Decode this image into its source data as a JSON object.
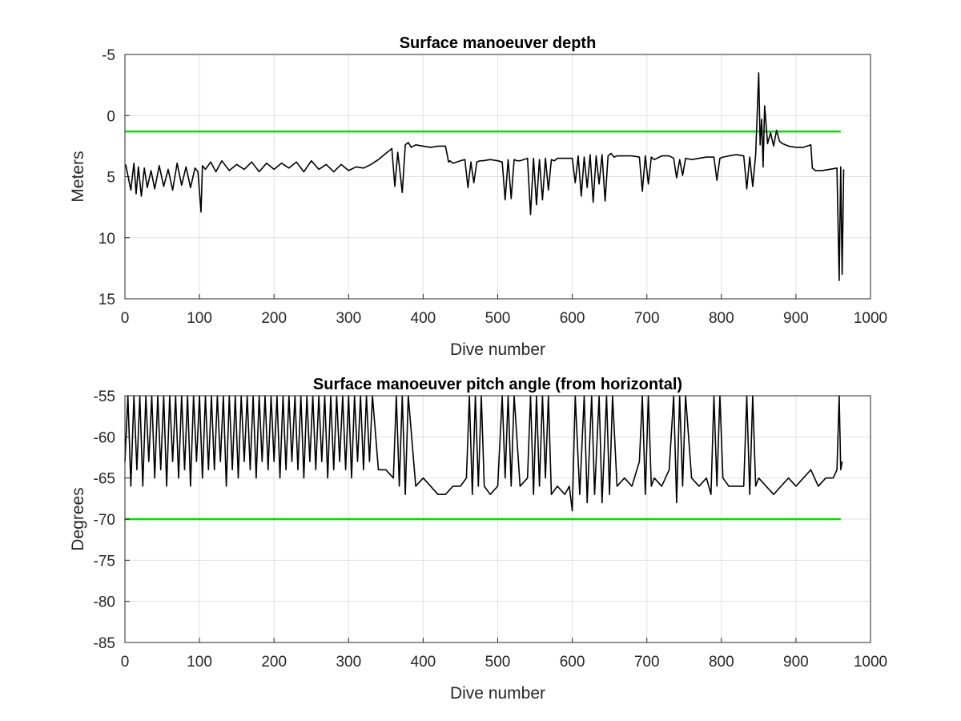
{
  "chart_data": [
    {
      "type": "line",
      "title": "Surface manoeuver depth",
      "xlabel": "Dive number",
      "ylabel": "Meters",
      "xlim": [
        0,
        1000
      ],
      "ylim": [
        -5,
        15
      ],
      "y_reversed": true,
      "xticks": [
        0,
        100,
        200,
        300,
        400,
        500,
        600,
        700,
        800,
        900,
        1000
      ],
      "yticks": [
        -5,
        0,
        5,
        10,
        15
      ],
      "grid": true,
      "series": [
        {
          "color": "#000000",
          "x": [
            1,
            8,
            12,
            15,
            18,
            22,
            26,
            30,
            35,
            40,
            46,
            52,
            58,
            64,
            70,
            76,
            82,
            88,
            94,
            98,
            102,
            104,
            108,
            115,
            122,
            130,
            140,
            150,
            160,
            170,
            180,
            190,
            200,
            210,
            220,
            230,
            240,
            250,
            260,
            270,
            280,
            290,
            300,
            310,
            320,
            330,
            340,
            350,
            358,
            362,
            366,
            372,
            376,
            380,
            384,
            390,
            400,
            410,
            420,
            430,
            434,
            436,
            440,
            450,
            456,
            460,
            464,
            468,
            472,
            476,
            480,
            490,
            500,
            506,
            510,
            514,
            518,
            522,
            526,
            530,
            540,
            544,
            548,
            552,
            556,
            560,
            564,
            568,
            572,
            576,
            580,
            590,
            600,
            604,
            608,
            612,
            616,
            620,
            624,
            628,
            632,
            636,
            640,
            644,
            648,
            652,
            656,
            660,
            670,
            680,
            690,
            694,
            698,
            702,
            706,
            710,
            720,
            730,
            736,
            740,
            744,
            748,
            752,
            760,
            770,
            780,
            790,
            794,
            798,
            802,
            810,
            820,
            830,
            834,
            838,
            842,
            846,
            850,
            852,
            854,
            856,
            858,
            862,
            866,
            870,
            874,
            878,
            882,
            890,
            900,
            910,
            920,
            922,
            926,
            935,
            945,
            955,
            958,
            960,
            962,
            964
          ],
          "y": [
            4.0,
            6.1,
            3.9,
            6.4,
            4.2,
            6.6,
            4.3,
            5.9,
            4.5,
            6.0,
            4.1,
            5.8,
            4.4,
            6.1,
            3.9,
            5.7,
            4.2,
            5.9,
            4.3,
            4.6,
            7.9,
            4.1,
            4.4,
            3.8,
            4.6,
            3.7,
            4.5,
            4.0,
            4.4,
            3.8,
            4.6,
            3.9,
            4.4,
            3.9,
            4.3,
            3.8,
            4.6,
            3.7,
            4.4,
            4.0,
            4.6,
            4.0,
            4.5,
            4.2,
            4.3,
            4.0,
            3.6,
            3.1,
            2.7,
            5.8,
            3.0,
            6.3,
            2.4,
            2.2,
            2.6,
            2.4,
            2.5,
            2.6,
            2.5,
            2.5,
            3.8,
            3.7,
            3.9,
            3.7,
            3.6,
            5.9,
            3.8,
            5.5,
            3.8,
            3.7,
            3.7,
            3.6,
            3.7,
            3.8,
            6.9,
            3.6,
            6.8,
            3.6,
            3.7,
            3.7,
            3.5,
            8.1,
            3.5,
            7.3,
            3.6,
            6.9,
            3.5,
            6.1,
            3.6,
            3.7,
            3.5,
            3.5,
            3.5,
            5.5,
            3.3,
            6.6,
            3.4,
            5.9,
            3.2,
            7.1,
            3.3,
            5.6,
            3.2,
            7.0,
            3.3,
            3.1,
            3.4,
            3.3,
            3.3,
            3.3,
            3.4,
            6.2,
            3.3,
            5.6,
            3.4,
            3.6,
            3.3,
            3.3,
            3.5,
            5.1,
            3.6,
            4.9,
            3.5,
            3.6,
            3.5,
            3.4,
            3.4,
            5.3,
            3.5,
            3.4,
            3.3,
            3.2,
            3.3,
            6.0,
            3.4,
            5.8,
            3.2,
            -3.5,
            2.4,
            0.3,
            4.2,
            -0.8,
            2.3,
            1.4,
            2.5,
            1.2,
            2.1,
            2.3,
            2.5,
            2.6,
            2.6,
            2.4,
            4.3,
            4.5,
            4.5,
            4.4,
            4.3,
            13.5,
            4.2,
            13.0,
            4.4
          ]
        }
      ],
      "reference_line": {
        "y": 1.3,
        "x": [
          0,
          960
        ],
        "color": "#00e000"
      }
    },
    {
      "type": "line",
      "title": "Surface manoeuver pitch angle (from horizontal)",
      "xlabel": "Dive number",
      "ylabel": "Degrees",
      "xlim": [
        0,
        1000
      ],
      "ylim": [
        -85,
        -55
      ],
      "xticks": [
        0,
        100,
        200,
        300,
        400,
        500,
        600,
        700,
        800,
        900,
        1000
      ],
      "yticks": [
        -55,
        -60,
        -65,
        -70,
        -75,
        -80,
        -85
      ],
      "grid": true,
      "series": [
        {
          "color": "#000000",
          "x": [
            0,
            4,
            8,
            12,
            16,
            20,
            24,
            28,
            32,
            36,
            40,
            44,
            48,
            52,
            56,
            60,
            64,
            68,
            72,
            76,
            80,
            84,
            88,
            92,
            96,
            100,
            104,
            108,
            112,
            116,
            120,
            124,
            128,
            132,
            136,
            140,
            144,
            148,
            152,
            156,
            160,
            164,
            168,
            172,
            176,
            180,
            184,
            188,
            192,
            196,
            200,
            204,
            208,
            212,
            216,
            220,
            224,
            228,
            232,
            236,
            240,
            244,
            248,
            252,
            256,
            260,
            264,
            268,
            272,
            276,
            280,
            284,
            288,
            292,
            296,
            300,
            304,
            308,
            312,
            316,
            320,
            324,
            328,
            332,
            340,
            350,
            360,
            364,
            368,
            372,
            376,
            380,
            390,
            400,
            410,
            420,
            430,
            440,
            450,
            458,
            462,
            466,
            470,
            474,
            478,
            482,
            490,
            500,
            506,
            510,
            514,
            518,
            522,
            530,
            540,
            544,
            548,
            552,
            556,
            560,
            564,
            568,
            572,
            580,
            590,
            596,
            600,
            604,
            610,
            616,
            620,
            626,
            630,
            636,
            640,
            646,
            650,
            654,
            660,
            670,
            680,
            690,
            694,
            698,
            702,
            706,
            710,
            720,
            730,
            736,
            740,
            744,
            748,
            752,
            760,
            770,
            780,
            786,
            790,
            794,
            798,
            802,
            810,
            820,
            830,
            834,
            838,
            842,
            846,
            850,
            860,
            870,
            880,
            890,
            900,
            910,
            920,
            930,
            940,
            950,
            955,
            958,
            960,
            962
          ],
          "y": [
            -63,
            -55,
            -66,
            -55,
            -64,
            -55,
            -66,
            -55,
            -63,
            -55,
            -65,
            -55,
            -64,
            -55,
            -66,
            -55,
            -63,
            -55,
            -65,
            -55,
            -64,
            -55,
            -66,
            -55,
            -63,
            -55,
            -65,
            -55,
            -64,
            -55,
            -64,
            -55,
            -63,
            -55,
            -66,
            -55,
            -64,
            -55,
            -65,
            -55,
            -63,
            -55,
            -64,
            -55,
            -65,
            -55,
            -63,
            -55,
            -64,
            -55,
            -63,
            -55,
            -65,
            -55,
            -64,
            -55,
            -63,
            -55,
            -64,
            -55,
            -65,
            -55,
            -63,
            -55,
            -64,
            -55,
            -63,
            -55,
            -65,
            -55,
            -64,
            -55,
            -63,
            -55,
            -64,
            -55,
            -65,
            -55,
            -63,
            -55,
            -64,
            -55,
            -63,
            -55,
            -64,
            -64,
            -65,
            -55,
            -66,
            -55,
            -67,
            -55,
            -66,
            -65,
            -66,
            -67,
            -67,
            -66,
            -66,
            -65,
            -55,
            -67,
            -55,
            -66,
            -55,
            -66,
            -67,
            -66,
            -55,
            -65,
            -55,
            -66,
            -55,
            -66,
            -65,
            -55,
            -67,
            -55,
            -66,
            -55,
            -65,
            -55,
            -67,
            -66,
            -67,
            -66,
            -69,
            -55,
            -67,
            -55,
            -68,
            -55,
            -67,
            -55,
            -68,
            -55,
            -67,
            -55,
            -66,
            -65,
            -66,
            -63,
            -55,
            -67,
            -55,
            -66,
            -65,
            -66,
            -64,
            -55,
            -68,
            -55,
            -66,
            -55,
            -65,
            -66,
            -65,
            -67,
            -55,
            -66,
            -55,
            -65,
            -66,
            -66,
            -66,
            -55,
            -67,
            -55,
            -66,
            -65,
            -66,
            -67,
            -66,
            -65,
            -66,
            -65,
            -64,
            -66,
            -65,
            -65,
            -64,
            -55,
            -64,
            -63
          ]
        }
      ],
      "reference_line": {
        "y": -70,
        "x": [
          0,
          960
        ],
        "color": "#00e000"
      }
    }
  ]
}
